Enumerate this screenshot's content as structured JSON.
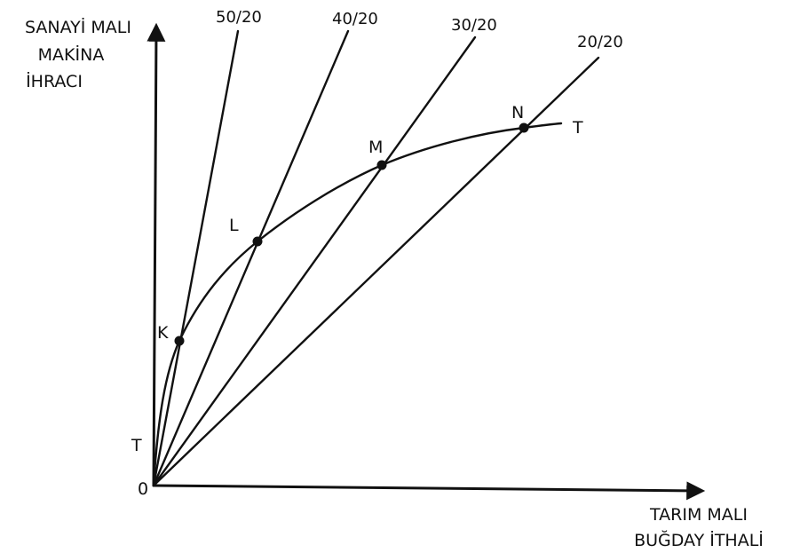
{
  "y_axis_label": [
    "SANAYİ MALI",
    "MAKİNA",
    "İHRACI"
  ],
  "x_axis_label": [
    "TARIM MALI",
    "BUĞDAY İTHALİ"
  ],
  "origin_label": "0",
  "curve_start_label": "T",
  "curve_end_label": "T",
  "rays": [
    {
      "label": "50/20"
    },
    {
      "label": "40/20"
    },
    {
      "label": "30/20"
    },
    {
      "label": "20/20"
    }
  ],
  "points": [
    {
      "label": "K"
    },
    {
      "label": "L"
    },
    {
      "label": "M"
    },
    {
      "label": "N"
    }
  ],
  "colors": {
    "ink": "#111111",
    "background": "#ffffff"
  }
}
